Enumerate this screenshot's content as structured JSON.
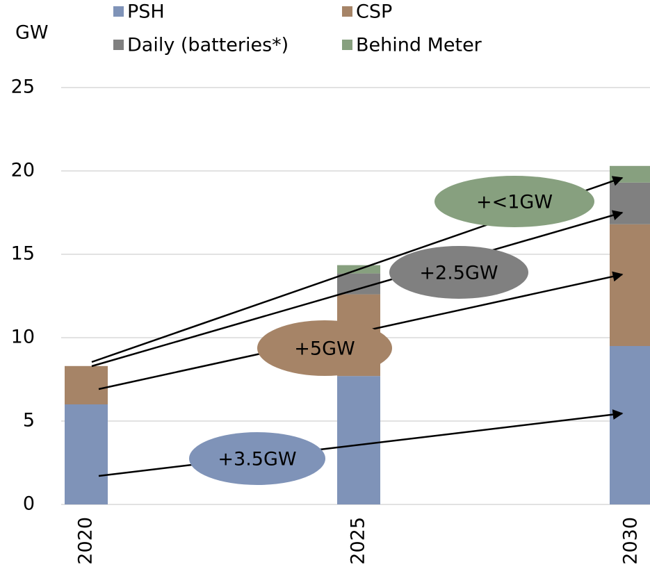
{
  "chart_data": {
    "type": "stacked_bar",
    "y_label": "GW",
    "categories": [
      "2020",
      "2025",
      "2030"
    ],
    "series": [
      {
        "name": "PSH",
        "color": "#7f93b8",
        "values": [
          6,
          7.7,
          9.5
        ]
      },
      {
        "name": "CSP",
        "color": "#a68467",
        "values": [
          2.3,
          4.9,
          7.3
        ]
      },
      {
        "name": "Daily (batteries*)",
        "color": "#808080",
        "values": [
          0,
          1.25,
          2.5
        ]
      },
      {
        "name": "Behind Meter",
        "color": "#87a07f",
        "values": [
          0,
          0.5,
          1.0
        ]
      }
    ],
    "annotations": [
      "+3.5GW",
      "+5GW",
      "+2.5GW",
      "+<1GW"
    ],
    "ylim": [
      0,
      25
    ],
    "yticks": [
      0,
      5,
      10,
      15,
      20,
      25
    ],
    "grid": true
  }
}
